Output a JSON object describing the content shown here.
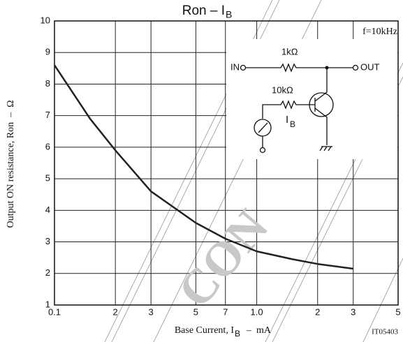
{
  "chart_data": {
    "type": "line",
    "title": "Ron  –  I",
    "title_sub": "B",
    "x_label": "Base Current, I",
    "x_label_sub": "B",
    "x_label_unit": "  –  mA",
    "y_label": "Output ON resistance, Ron  –  Ω",
    "x": [
      0.1,
      0.15,
      0.2,
      0.3,
      0.5,
      0.7,
      1,
      1.5,
      2,
      3
    ],
    "series": [
      {
        "color": "#222222",
        "values": [
          8.6,
          6.9,
          5.9,
          4.6,
          3.6,
          3.1,
          2.7,
          2.45,
          2.3,
          2.15
        ]
      }
    ],
    "xlim": [
      0.1,
      5
    ],
    "ylim": [
      1,
      10
    ],
    "log_x": true,
    "grid": true,
    "xticks": [
      0.1,
      {
        "value": 0.2,
        "label": "2"
      },
      {
        "value": 0.3,
        "label": "3"
      },
      {
        "value": 0.5,
        "label": "5"
      },
      {
        "value": 0.7,
        "label": "7"
      },
      {
        "value": 1,
        "label": "1.0"
      },
      2,
      3,
      5
    ],
    "yticks": [
      1,
      2,
      3,
      4,
      5,
      6,
      7,
      8,
      9,
      10
    ],
    "annotations": {
      "frequency": "f=10kHz",
      "code": "IT05403",
      "watermark": "CON"
    },
    "circuit": {
      "input": "IN",
      "r1": "1kΩ",
      "output": "OUT",
      "r2": "10kΩ",
      "current": "I",
      "current_sub": "B"
    }
  }
}
